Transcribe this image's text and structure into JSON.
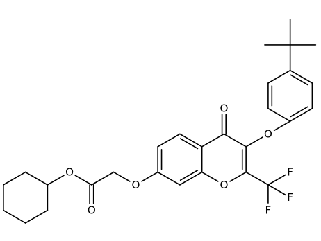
{
  "atoms": [
    {
      "label": "O"
    },
    {
      "label": "O"
    },
    {
      "label": "O"
    },
    {
      "label": "O"
    },
    {
      "label": "O"
    },
    {
      "label": "O"
    },
    {
      "label": "F"
    },
    {
      "label": "F"
    },
    {
      "label": "F"
    }
  ]
}
